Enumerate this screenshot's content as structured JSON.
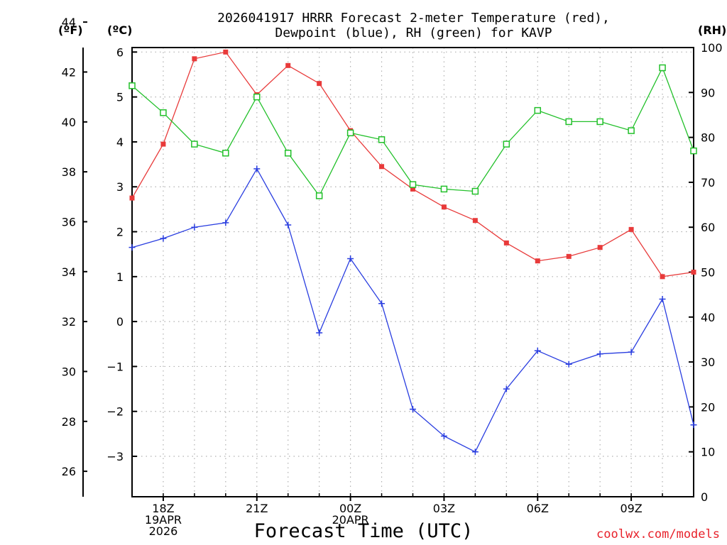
{
  "chart_data": {
    "type": "line",
    "title_line1": "2026041917 HRRR Forecast 2-meter Temperature (red),",
    "title_line2": "Dewpoint (blue), RH (green) for KAVP",
    "xlabel": "Forecast Time (UTC)",
    "unit_f": "(ºF)",
    "unit_c": "(ºC)",
    "unit_rh": "(RH)",
    "credit": "coolwx.com/models",
    "hours": [
      17,
      18,
      19,
      20,
      21,
      22,
      23,
      24,
      25,
      26,
      27,
      28,
      29,
      30,
      31,
      32,
      33,
      34,
      35
    ],
    "x_ticks": [
      {
        "hour": 18,
        "lines": [
          "18Z",
          "19APR",
          "2026"
        ]
      },
      {
        "hour": 21,
        "lines": [
          "21Z"
        ]
      },
      {
        "hour": 24,
        "lines": [
          "00Z",
          "20APR"
        ]
      },
      {
        "hour": 27,
        "lines": [
          "03Z"
        ]
      },
      {
        "hour": 30,
        "lines": [
          "06Z"
        ]
      },
      {
        "hour": 33,
        "lines": [
          "09Z"
        ]
      }
    ],
    "celsius_ticks": [
      "−3",
      "−2",
      "−1",
      "0",
      "1",
      "2",
      "3",
      "4",
      "5",
      "6"
    ],
    "fahrenheit_ticks": [
      "26",
      "28",
      "30",
      "32",
      "34",
      "36",
      "38",
      "40",
      "42",
      "44"
    ],
    "rh_ticks": [
      "0",
      "10",
      "20",
      "30",
      "40",
      "50",
      "60",
      "70",
      "80",
      "90",
      "100"
    ],
    "celsius_range": [
      -3.9,
      6.1
    ],
    "rh_range": [
      0,
      100
    ],
    "series": [
      {
        "name": "Temperature",
        "color": "#e83a3a",
        "marker": "filled-square",
        "axis": "celsius",
        "values": [
          2.75,
          3.95,
          5.85,
          6.0,
          5.05,
          5.7,
          5.3,
          4.25,
          3.45,
          2.95,
          2.55,
          2.25,
          1.75,
          1.35,
          1.45,
          1.65,
          2.05,
          1.0,
          1.1
        ]
      },
      {
        "name": "Dewpoint",
        "color": "#2a3ee0",
        "marker": "plus",
        "axis": "celsius",
        "values": [
          1.65,
          1.85,
          2.1,
          2.2,
          3.4,
          2.15,
          -0.25,
          1.4,
          0.4,
          -1.95,
          -2.55,
          -2.9,
          -1.5,
          -0.65,
          -0.95,
          -0.72,
          -0.68,
          0.5,
          -2.3
        ]
      },
      {
        "name": "RH",
        "color": "#22c02a",
        "marker": "open-square",
        "axis": "rh",
        "values": [
          91.5,
          85.5,
          78.5,
          76.5,
          89.0,
          76.5,
          67.0,
          81.0,
          79.5,
          69.5,
          68.5,
          68.0,
          78.5,
          86.0,
          83.5,
          83.5,
          81.5,
          95.5,
          77.0
        ]
      }
    ]
  }
}
